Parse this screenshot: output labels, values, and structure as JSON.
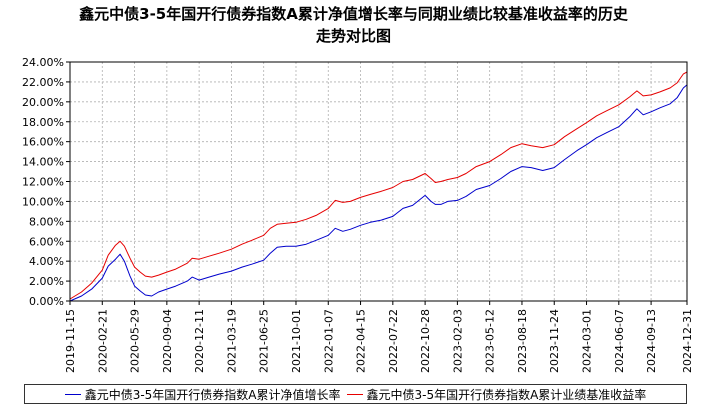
{
  "title_line1": "鑫元中债3-5年国开行债券指数A累计净值增长率与同期业绩比较基准收益率的历史",
  "title_line2": "走势对比图",
  "chart_data": {
    "type": "line",
    "title": "鑫元中债3-5年国开行债券指数A累计净值增长率与同期业绩比较基准收益率的历史走势对比图",
    "ylim": [
      0,
      24
    ],
    "yticks": [
      "0.00%",
      "2.00%",
      "4.00%",
      "6.00%",
      "8.00%",
      "10.00%",
      "12.00%",
      "14.00%",
      "16.00%",
      "18.00%",
      "20.00%",
      "22.00%",
      "24.00%"
    ],
    "x_range": [
      "2019-11-15",
      "2024-12-31"
    ],
    "xticks": [
      "2019-11-15",
      "2020-02-21",
      "2020-05-29",
      "2020-09-04",
      "2020-12-11",
      "2021-03-19",
      "2021-06-25",
      "2021-10-01",
      "2022-01-07",
      "2022-04-15",
      "2022-07-22",
      "2022-10-28",
      "2023-02-03",
      "2023-05-12",
      "2023-08-18",
      "2023-11-24",
      "2024-03-01",
      "2024-06-07",
      "2024-09-13",
      "2024-12-31"
    ],
    "grid": true,
    "legend_position": "bottom",
    "series": [
      {
        "name": "鑫元中债3-5年国开行债券指数A累计净值增长率",
        "color": "#0000cc",
        "points": [
          [
            "2019-11-15",
            0.0
          ],
          [
            "2019-12-20",
            0.5
          ],
          [
            "2020-01-20",
            1.2
          ],
          [
            "2020-02-21",
            2.3
          ],
          [
            "2020-03-10",
            3.5
          ],
          [
            "2020-04-01",
            4.2
          ],
          [
            "2020-04-15",
            4.7
          ],
          [
            "2020-04-28",
            4.0
          ],
          [
            "2020-05-15",
            2.5
          ],
          [
            "2020-05-29",
            1.5
          ],
          [
            "2020-06-15",
            1.0
          ],
          [
            "2020-07-01",
            0.6
          ],
          [
            "2020-07-20",
            0.5
          ],
          [
            "2020-08-10",
            0.9
          ],
          [
            "2020-09-04",
            1.2
          ],
          [
            "2020-10-01",
            1.5
          ],
          [
            "2020-11-05",
            2.0
          ],
          [
            "2020-11-20",
            2.4
          ],
          [
            "2020-12-11",
            2.1
          ],
          [
            "2021-01-10",
            2.4
          ],
          [
            "2021-02-10",
            2.7
          ],
          [
            "2021-03-19",
            3.0
          ],
          [
            "2021-04-20",
            3.4
          ],
          [
            "2021-05-20",
            3.7
          ],
          [
            "2021-06-25",
            4.1
          ],
          [
            "2021-07-15",
            4.8
          ],
          [
            "2021-08-05",
            5.4
          ],
          [
            "2021-09-01",
            5.5
          ],
          [
            "2021-10-01",
            5.5
          ],
          [
            "2021-11-01",
            5.7
          ],
          [
            "2021-12-01",
            6.1
          ],
          [
            "2022-01-07",
            6.6
          ],
          [
            "2022-01-28",
            7.3
          ],
          [
            "2022-02-20",
            7.0
          ],
          [
            "2022-03-15",
            7.2
          ],
          [
            "2022-04-15",
            7.6
          ],
          [
            "2022-05-15",
            7.9
          ],
          [
            "2022-06-15",
            8.1
          ],
          [
            "2022-07-22",
            8.5
          ],
          [
            "2022-08-22",
            9.3
          ],
          [
            "2022-09-20",
            9.6
          ],
          [
            "2022-10-28",
            10.6
          ],
          [
            "2022-11-15",
            10.0
          ],
          [
            "2022-11-28",
            9.7
          ],
          [
            "2022-12-15",
            9.7
          ],
          [
            "2023-01-05",
            10.0
          ],
          [
            "2023-02-03",
            10.1
          ],
          [
            "2023-03-01",
            10.5
          ],
          [
            "2023-04-01",
            11.2
          ],
          [
            "2023-05-12",
            11.6
          ],
          [
            "2023-06-15",
            12.3
          ],
          [
            "2023-07-15",
            13.0
          ],
          [
            "2023-08-18",
            13.5
          ],
          [
            "2023-09-15",
            13.4
          ],
          [
            "2023-10-20",
            13.1
          ],
          [
            "2023-11-24",
            13.4
          ],
          [
            "2023-12-25",
            14.2
          ],
          [
            "2024-02-01",
            15.1
          ],
          [
            "2024-03-01",
            15.7
          ],
          [
            "2024-04-01",
            16.4
          ],
          [
            "2024-05-01",
            16.9
          ],
          [
            "2024-06-07",
            17.5
          ],
          [
            "2024-07-10",
            18.5
          ],
          [
            "2024-08-01",
            19.3
          ],
          [
            "2024-08-20",
            18.7
          ],
          [
            "2024-09-13",
            19.0
          ],
          [
            "2024-10-10",
            19.4
          ],
          [
            "2024-11-10",
            19.8
          ],
          [
            "2024-12-01",
            20.4
          ],
          [
            "2024-12-20",
            21.4
          ],
          [
            "2024-12-31",
            21.7
          ]
        ]
      },
      {
        "name": "鑫元中债3-5年国开行债券指数A累计业绩基准收益率",
        "color": "#e60000",
        "points": [
          [
            "2019-11-15",
            0.2
          ],
          [
            "2019-12-20",
            0.9
          ],
          [
            "2020-01-20",
            1.8
          ],
          [
            "2020-02-21",
            3.1
          ],
          [
            "2020-03-10",
            4.6
          ],
          [
            "2020-04-01",
            5.6
          ],
          [
            "2020-04-15",
            6.0
          ],
          [
            "2020-04-28",
            5.5
          ],
          [
            "2020-05-15",
            4.3
          ],
          [
            "2020-05-29",
            3.4
          ],
          [
            "2020-06-15",
            2.9
          ],
          [
            "2020-07-01",
            2.5
          ],
          [
            "2020-07-20",
            2.4
          ],
          [
            "2020-08-10",
            2.6
          ],
          [
            "2020-09-04",
            2.9
          ],
          [
            "2020-10-01",
            3.2
          ],
          [
            "2020-11-05",
            3.8
          ],
          [
            "2020-11-20",
            4.3
          ],
          [
            "2020-12-11",
            4.2
          ],
          [
            "2021-01-10",
            4.5
          ],
          [
            "2021-02-10",
            4.8
          ],
          [
            "2021-03-19",
            5.2
          ],
          [
            "2021-04-20",
            5.7
          ],
          [
            "2021-05-20",
            6.1
          ],
          [
            "2021-06-25",
            6.6
          ],
          [
            "2021-07-15",
            7.3
          ],
          [
            "2021-08-05",
            7.7
          ],
          [
            "2021-09-01",
            7.8
          ],
          [
            "2021-10-01",
            7.9
          ],
          [
            "2021-11-01",
            8.2
          ],
          [
            "2021-12-01",
            8.6
          ],
          [
            "2022-01-07",
            9.3
          ],
          [
            "2022-01-28",
            10.1
          ],
          [
            "2022-02-20",
            9.9
          ],
          [
            "2022-03-15",
            10.0
          ],
          [
            "2022-04-15",
            10.4
          ],
          [
            "2022-05-15",
            10.7
          ],
          [
            "2022-06-15",
            11.0
          ],
          [
            "2022-07-22",
            11.4
          ],
          [
            "2022-08-22",
            12.0
          ],
          [
            "2022-09-20",
            12.2
          ],
          [
            "2022-10-28",
            12.8
          ],
          [
            "2022-11-15",
            12.3
          ],
          [
            "2022-11-28",
            11.9
          ],
          [
            "2022-12-15",
            12.0
          ],
          [
            "2023-01-05",
            12.2
          ],
          [
            "2023-02-03",
            12.4
          ],
          [
            "2023-03-01",
            12.8
          ],
          [
            "2023-04-01",
            13.5
          ],
          [
            "2023-05-12",
            14.0
          ],
          [
            "2023-06-15",
            14.7
          ],
          [
            "2023-07-15",
            15.4
          ],
          [
            "2023-08-18",
            15.8
          ],
          [
            "2023-09-15",
            15.6
          ],
          [
            "2023-10-20",
            15.4
          ],
          [
            "2023-11-24",
            15.7
          ],
          [
            "2023-12-25",
            16.5
          ],
          [
            "2024-02-01",
            17.3
          ],
          [
            "2024-03-01",
            17.9
          ],
          [
            "2024-04-01",
            18.6
          ],
          [
            "2024-05-01",
            19.1
          ],
          [
            "2024-06-07",
            19.7
          ],
          [
            "2024-07-10",
            20.5
          ],
          [
            "2024-08-01",
            21.1
          ],
          [
            "2024-08-20",
            20.6
          ],
          [
            "2024-09-13",
            20.7
          ],
          [
            "2024-10-10",
            21.0
          ],
          [
            "2024-11-10",
            21.4
          ],
          [
            "2024-12-01",
            21.9
          ],
          [
            "2024-12-20",
            22.8
          ],
          [
            "2024-12-31",
            23.0
          ]
        ]
      }
    ]
  }
}
